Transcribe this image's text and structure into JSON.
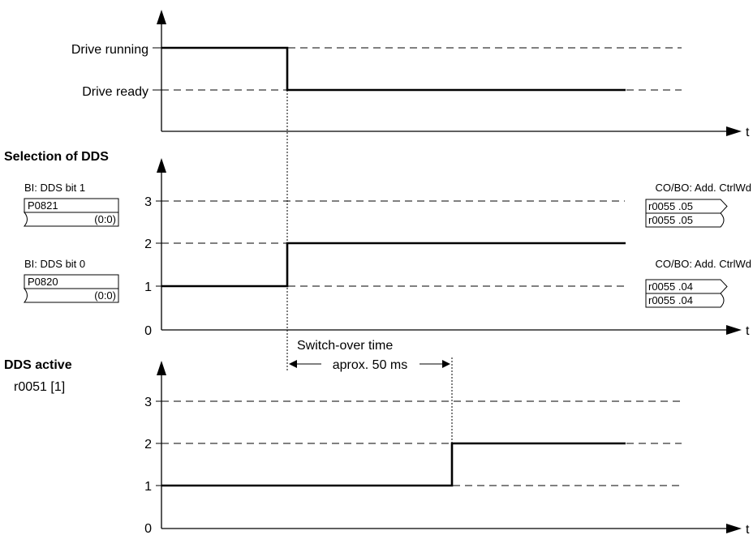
{
  "panel1": {
    "label_running": "Drive running",
    "label_ready": "Drive ready",
    "axis_t": "t"
  },
  "panel2": {
    "title": "Selection of DDS",
    "ticks": [
      "3",
      "2",
      "1",
      "0"
    ],
    "axis_t": "t",
    "bit1": {
      "caption": "BI: DDS bit 1",
      "param": "P0821",
      "value": "(0:0)"
    },
    "bit0": {
      "caption": "BI: DDS bit 0",
      "param": "P0820",
      "value": "(0:0)"
    },
    "out_upper": {
      "caption": "CO/BO: Add. CtrlWd",
      "out": "r0055 .05",
      "in": "r0055 .05"
    },
    "out_lower": {
      "caption": "CO/BO: Add. CtrlWd",
      "out": "r0055 .04",
      "in": "r0055 .04"
    }
  },
  "switchover": {
    "line1": "Switch-over time",
    "line2": "aprox. 50 ms"
  },
  "panel3": {
    "title": "DDS active",
    "param": "r0051 [1]",
    "ticks": [
      "3",
      "2",
      "1",
      "0"
    ],
    "axis_t": "t"
  }
}
